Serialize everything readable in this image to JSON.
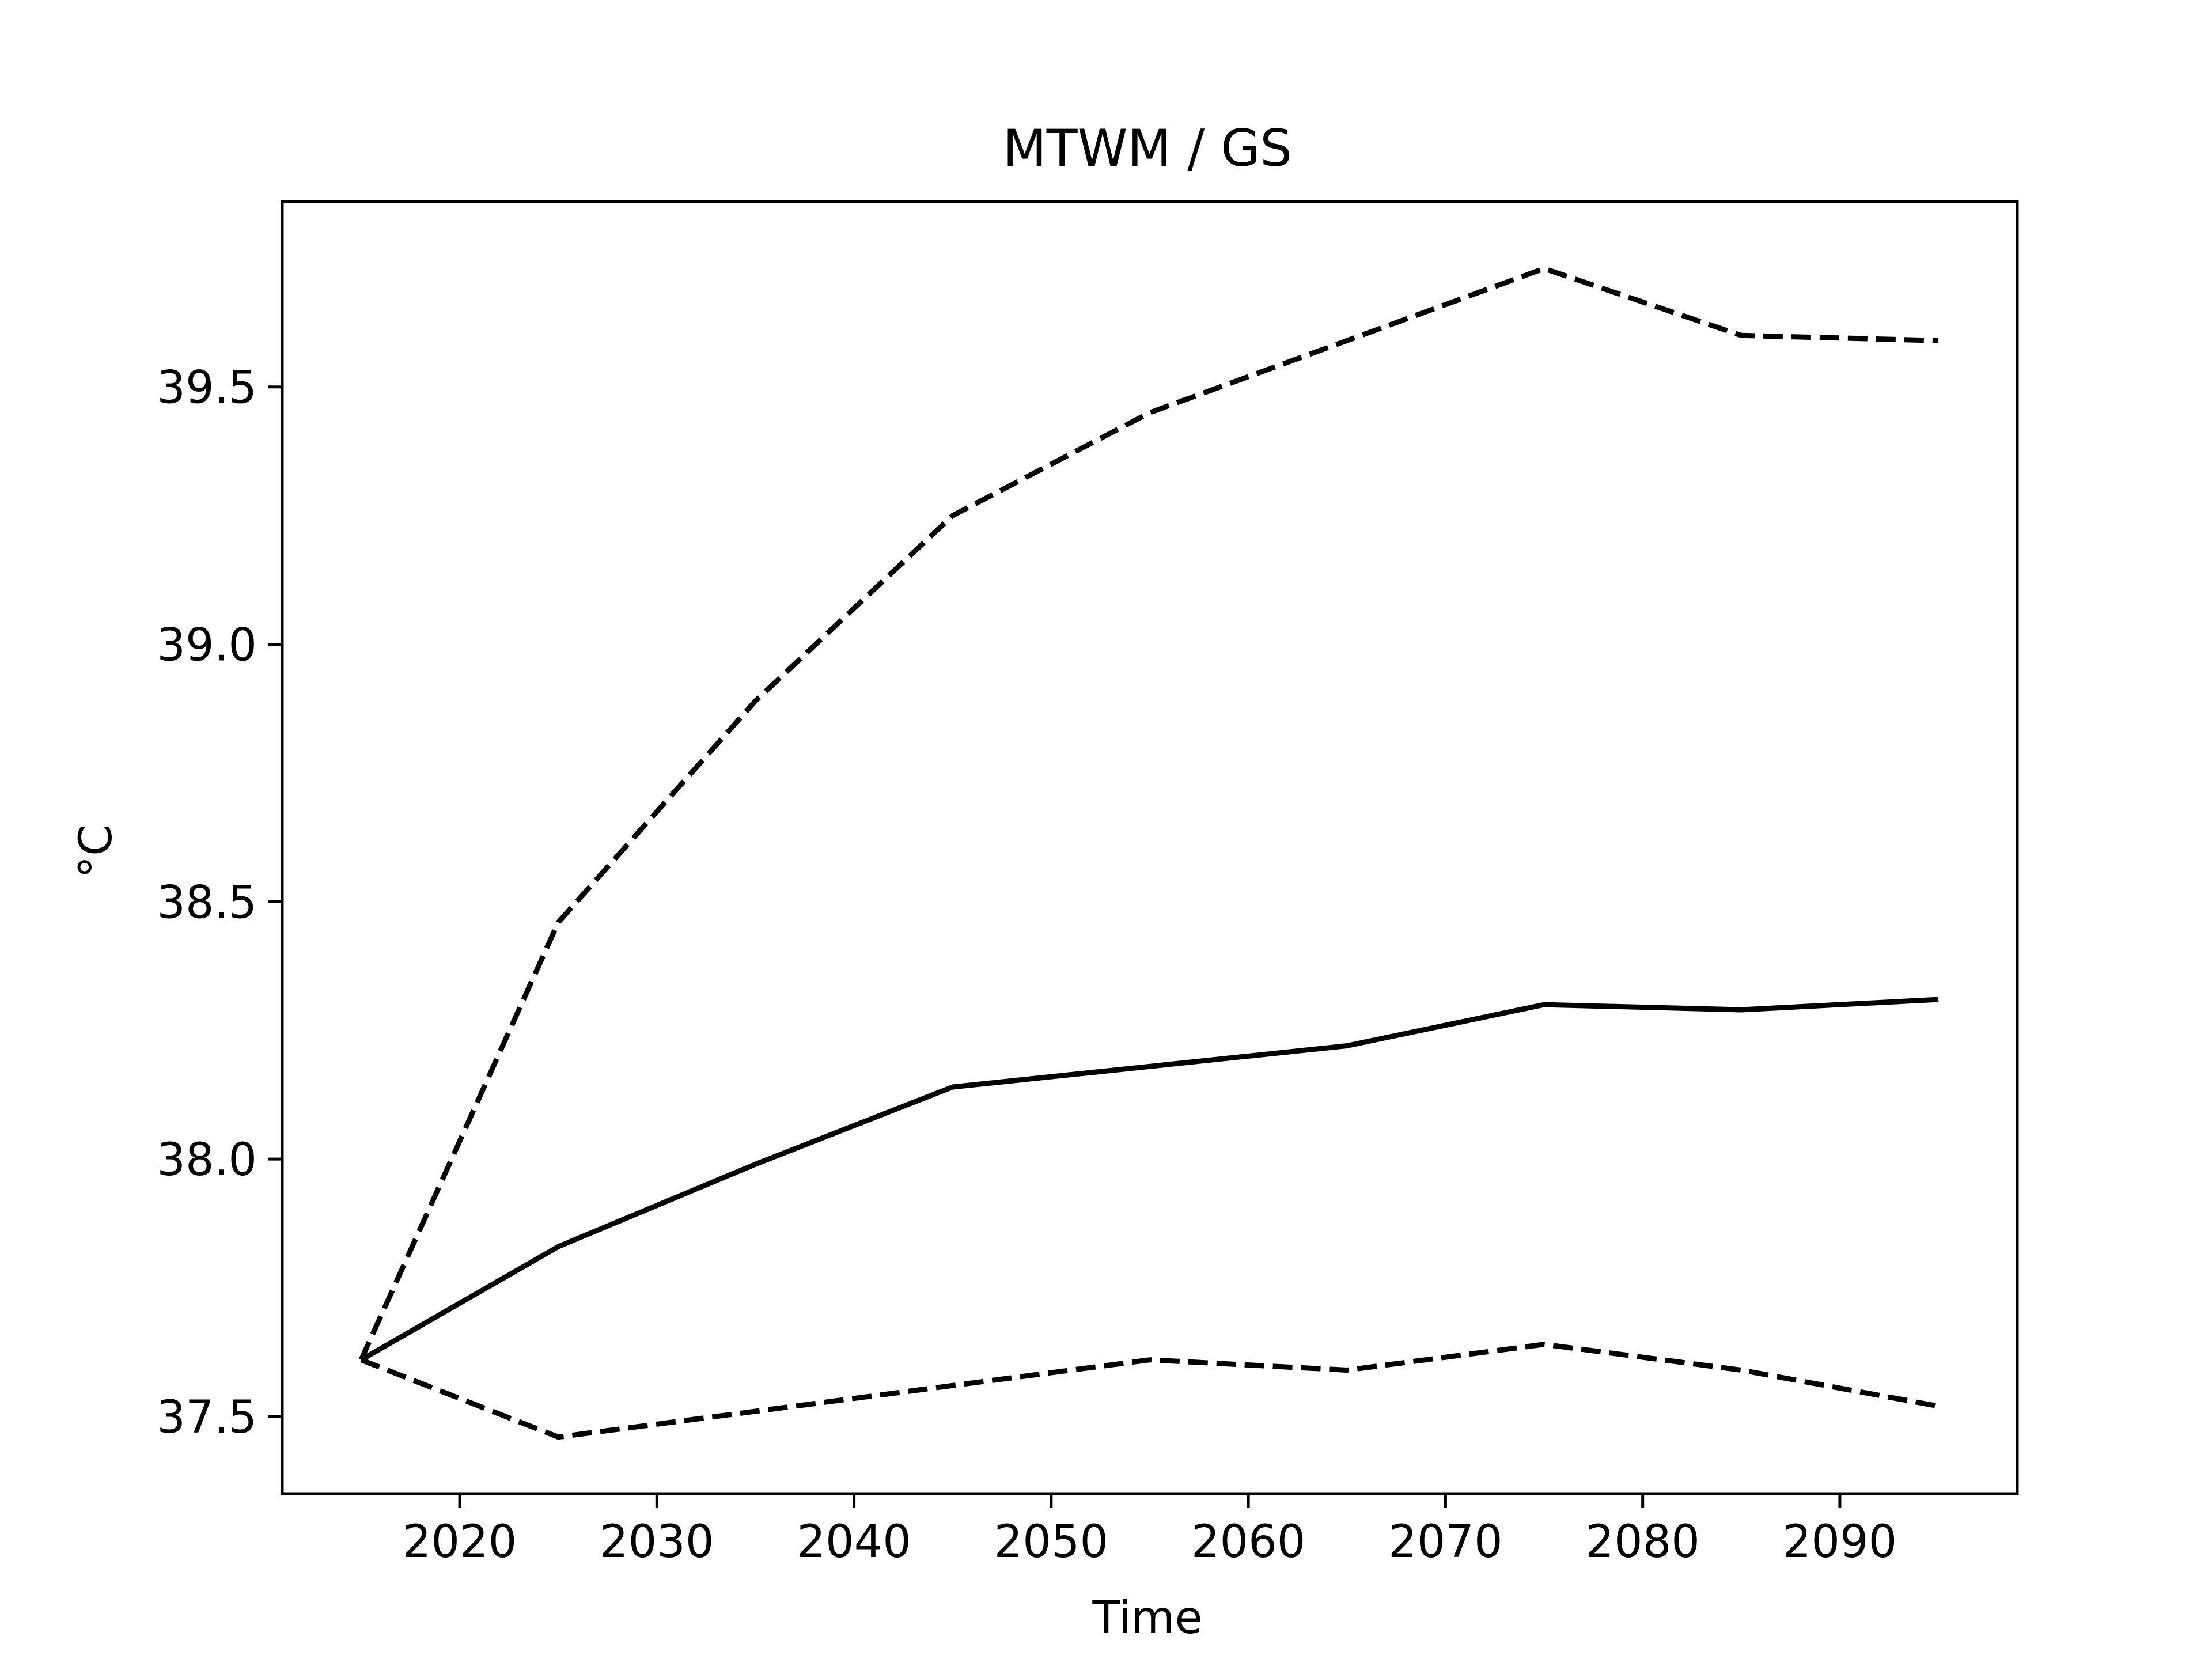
{
  "chart_data": {
    "type": "line",
    "title": "MTWM / GS",
    "xlabel": "Time",
    "ylabel": "°C",
    "xlim": [
      2011,
      2099
    ],
    "ylim": [
      37.35,
      39.86
    ],
    "x_ticks": [
      2020,
      2030,
      2040,
      2050,
      2060,
      2070,
      2080,
      2090
    ],
    "y_ticks": [
      37.5,
      38.0,
      38.5,
      39.0,
      39.5
    ],
    "grid": false,
    "legend": "none",
    "x": [
      2015,
      2025,
      2035,
      2045,
      2055,
      2065,
      2075,
      2085,
      2095
    ],
    "series": [
      {
        "style": "dashed",
        "color": "#000000",
        "values": [
          37.61,
          38.46,
          38.89,
          39.25,
          39.45,
          39.59,
          39.73,
          39.6,
          39.59
        ]
      },
      {
        "style": "solid",
        "color": "#000000",
        "values": [
          37.61,
          37.83,
          37.99,
          38.14,
          38.18,
          38.22,
          38.3,
          38.29,
          38.31
        ]
      },
      {
        "style": "dashed",
        "color": "#000000",
        "values": [
          37.61,
          37.46,
          37.51,
          37.56,
          37.61,
          37.59,
          37.64,
          37.59,
          37.52
        ]
      }
    ]
  }
}
